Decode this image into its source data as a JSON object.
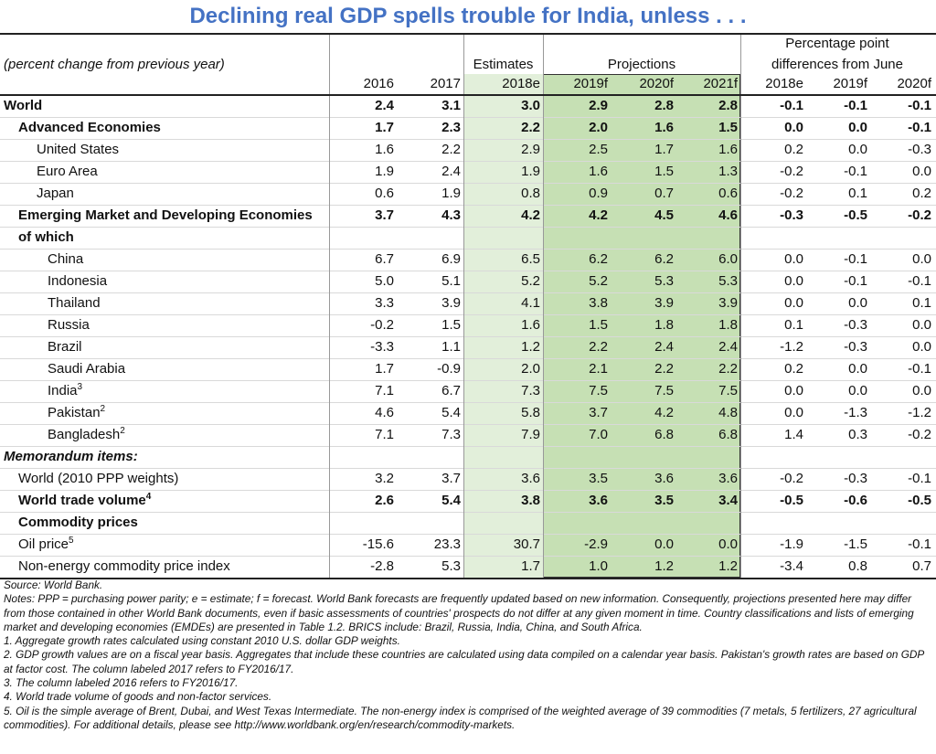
{
  "title": "Declining real GDP spells trouble for India, unless  . . .",
  "header": {
    "subtitle": "(percent change from previous year)",
    "estimates": "Estimates",
    "projections": "Projections",
    "differences": [
      "Percentage point",
      "differences from June"
    ],
    "columns": [
      "2016",
      "2017",
      "2018e",
      "2019f",
      "2020f",
      "2021f",
      "2018e",
      "2019f",
      "2020f"
    ]
  },
  "rows": [
    {
      "label": "World",
      "bold": true,
      "indent": 0,
      "values": [
        "2.4",
        "3.1",
        "3.0",
        "2.9",
        "2.8",
        "2.8",
        "-0.1",
        "-0.1",
        "-0.1"
      ]
    },
    {
      "label": "Advanced Economies",
      "bold": true,
      "indent": 1,
      "values": [
        "1.7",
        "2.3",
        "2.2",
        "2.0",
        "1.6",
        "1.5",
        "0.0",
        "0.0",
        "-0.1"
      ]
    },
    {
      "label": "United States",
      "indent": 2,
      "values": [
        "1.6",
        "2.2",
        "2.9",
        "2.5",
        "1.7",
        "1.6",
        "0.2",
        "0.0",
        "-0.3"
      ]
    },
    {
      "label": "Euro Area",
      "indent": 2,
      "values": [
        "1.9",
        "2.4",
        "1.9",
        "1.6",
        "1.5",
        "1.3",
        "-0.2",
        "-0.1",
        "0.0"
      ]
    },
    {
      "label": "Japan",
      "indent": 2,
      "values": [
        "0.6",
        "1.9",
        "0.8",
        "0.9",
        "0.7",
        "0.6",
        "-0.2",
        "0.1",
        "0.2"
      ]
    },
    {
      "label": "Emerging Market and Developing Economies",
      "bold": true,
      "indent": 1,
      "values": [
        "3.7",
        "4.3",
        "4.2",
        "4.2",
        "4.5",
        "4.6",
        "-0.3",
        "-0.5",
        "-0.2"
      ]
    },
    {
      "label": "of which",
      "bold": true,
      "indent": 1
    },
    {
      "label": "China",
      "indent": 3,
      "values": [
        "6.7",
        "6.9",
        "6.5",
        "6.2",
        "6.2",
        "6.0",
        "0.0",
        "-0.1",
        "0.0"
      ]
    },
    {
      "label": "Indonesia",
      "indent": 3,
      "values": [
        "5.0",
        "5.1",
        "5.2",
        "5.2",
        "5.3",
        "5.3",
        "0.0",
        "-0.1",
        "-0.1"
      ]
    },
    {
      "label": "Thailand",
      "indent": 3,
      "values": [
        "3.3",
        "3.9",
        "4.1",
        "3.8",
        "3.9",
        "3.9",
        "0.0",
        "0.0",
        "0.1"
      ]
    },
    {
      "label": "Russia",
      "indent": 3,
      "values": [
        "-0.2",
        "1.5",
        "1.6",
        "1.5",
        "1.8",
        "1.8",
        "0.1",
        "-0.3",
        "0.0"
      ]
    },
    {
      "label": "Brazil",
      "indent": 3,
      "values": [
        "-3.3",
        "1.1",
        "1.2",
        "2.2",
        "2.4",
        "2.4",
        "-1.2",
        "-0.3",
        "0.0"
      ]
    },
    {
      "label": "Saudi Arabia",
      "indent": 3,
      "values": [
        "1.7",
        "-0.9",
        "2.0",
        "2.1",
        "2.2",
        "2.2",
        "0.2",
        "0.0",
        "-0.1"
      ]
    },
    {
      "label": "India",
      "note": "3",
      "indent": 3,
      "values": [
        "7.1",
        "6.7",
        "7.3",
        "7.5",
        "7.5",
        "7.5",
        "0.0",
        "0.0",
        "0.0"
      ]
    },
    {
      "label": "Pakistan",
      "note": "2",
      "indent": 3,
      "values": [
        "4.6",
        "5.4",
        "5.8",
        "3.7",
        "4.2",
        "4.8",
        "0.0",
        "-1.3",
        "-1.2"
      ]
    },
    {
      "label": "Bangladesh",
      "note": "2",
      "indent": 3,
      "values": [
        "7.1",
        "7.3",
        "7.9",
        "7.0",
        "6.8",
        "6.8",
        "1.4",
        "0.3",
        "-0.2"
      ]
    },
    {
      "label": "Memorandum items:",
      "bold": true,
      "italic": true,
      "indent": 0
    },
    {
      "label": "World (2010 PPP weights)",
      "indent": 1,
      "values": [
        "3.2",
        "3.7",
        "3.6",
        "3.5",
        "3.6",
        "3.6",
        "-0.2",
        "-0.3",
        "-0.1"
      ]
    },
    {
      "label": "World trade volume",
      "note": "4",
      "bold": true,
      "indent": 1,
      "values": [
        "2.6",
        "5.4",
        "3.8",
        "3.6",
        "3.5",
        "3.4",
        "-0.5",
        "-0.6",
        "-0.5"
      ]
    },
    {
      "label": "Commodity prices",
      "bold": true,
      "indent": 1
    },
    {
      "label": "Oil price",
      "note": "5",
      "indent": 1,
      "values": [
        "-15.6",
        "23.3",
        "30.7",
        "-2.9",
        "0.0",
        "0.0",
        "-1.9",
        "-1.5",
        "-0.1"
      ]
    },
    {
      "label": "Non-energy commodity price index",
      "indent": 1,
      "values": [
        "-2.8",
        "5.3",
        "1.7",
        "1.0",
        "1.2",
        "1.2",
        "-3.4",
        "0.8",
        "0.7"
      ]
    }
  ],
  "notes": [
    "Source: World Bank.",
    "Notes: PPP = purchasing power parity; e = estimate; f = forecast. World Bank forecasts are frequently updated based on new information. Consequently, projections presented here may differ from those contained in other World Bank documents, even if basic assessments of countries' prospects do not differ at any given moment in time. Country classifications and lists of emerging market and developing economies (EMDEs) are presented in Table 1.2. BRICS include: Brazil, Russia, India, China, and South Africa.",
    "1. Aggregate growth rates calculated using constant 2010 U.S. dollar GDP weights.",
    "2. GDP growth values are on a fiscal year basis. Aggregates that include these countries are calculated using data compiled on a calendar year basis. Pakistan's growth rates are based on GDP at factor cost. The column labeled 2017 refers to FY2016/17.",
    "3. The column labeled 2016 refers to FY2016/17.",
    "4. World trade volume of goods and non-factor services.",
    "5. Oil is the simple average of Brent, Dubai, and West Texas Intermediate. The non-energy index is comprised of the weighted average of 39 commodities (7 metals, 5 fertilizers, 27 agricultural commodities). For additional details, please see http://www.worldbank.org/en/research/commodity-markets."
  ]
}
